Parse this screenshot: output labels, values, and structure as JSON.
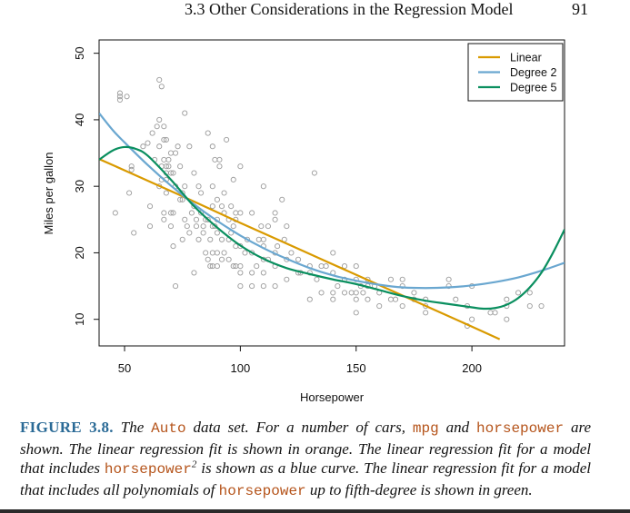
{
  "header": {
    "section_title": "3.3 Other Considerations in the Regression Model",
    "page_number": "91"
  },
  "colors": {
    "linear": "#d99a00",
    "degree2": "#6aa7d0",
    "degree5": "#0a8f5f",
    "points": "#9a9a9a",
    "caption_label": "#2a6a96",
    "caption_code": "#b5541b"
  },
  "chart_data": {
    "type": "scatter",
    "title": "",
    "xlabel": "Horsepower",
    "ylabel": "Miles per gallon",
    "xlim": [
      39,
      240
    ],
    "ylim": [
      6,
      52
    ],
    "x_ticks": [
      50,
      100,
      150,
      200
    ],
    "y_ticks": [
      10,
      20,
      30,
      40,
      50
    ],
    "grid": false,
    "legend_position": "top-right",
    "points": [
      [
        46,
        26
      ],
      [
        48,
        44
      ],
      [
        48,
        43
      ],
      [
        48,
        43.5
      ],
      [
        51,
        43.5
      ],
      [
        52,
        29
      ],
      [
        53,
        33
      ],
      [
        53,
        32.5
      ],
      [
        54,
        23
      ],
      [
        58,
        36
      ],
      [
        60,
        36.5
      ],
      [
        61,
        27
      ],
      [
        61,
        24
      ],
      [
        62,
        38
      ],
      [
        63,
        34
      ],
      [
        64,
        39
      ],
      [
        65,
        46
      ],
      [
        65,
        40
      ],
      [
        65,
        36
      ],
      [
        65,
        30
      ],
      [
        66,
        45
      ],
      [
        66,
        33
      ],
      [
        66,
        31
      ],
      [
        67,
        39
      ],
      [
        67,
        37
      ],
      [
        67,
        34
      ],
      [
        67,
        26
      ],
      [
        67,
        25
      ],
      [
        68,
        37
      ],
      [
        68,
        33
      ],
      [
        68,
        32
      ],
      [
        68,
        31
      ],
      [
        68,
        29
      ],
      [
        69,
        34
      ],
      [
        69,
        33
      ],
      [
        70,
        35
      ],
      [
        70,
        32
      ],
      [
        70,
        26
      ],
      [
        70,
        24
      ],
      [
        71,
        32
      ],
      [
        71,
        26
      ],
      [
        71,
        21
      ],
      [
        72,
        35
      ],
      [
        72,
        30
      ],
      [
        72,
        15
      ],
      [
        73,
        36
      ],
      [
        74,
        33
      ],
      [
        74,
        28
      ],
      [
        75,
        29
      ],
      [
        75,
        28
      ],
      [
        75,
        22
      ],
      [
        76,
        41
      ],
      [
        76,
        30
      ],
      [
        76,
        25
      ],
      [
        77,
        24
      ],
      [
        78,
        36
      ],
      [
        78,
        23
      ],
      [
        79,
        26
      ],
      [
        80,
        32
      ],
      [
        80,
        27
      ],
      [
        80,
        17
      ],
      [
        81,
        25
      ],
      [
        81,
        24
      ],
      [
        82,
        22
      ],
      [
        82,
        30
      ],
      [
        83,
        29
      ],
      [
        83,
        26
      ],
      [
        84,
        24
      ],
      [
        84,
        23
      ],
      [
        85,
        25
      ],
      [
        85,
        20
      ],
      [
        86,
        38
      ],
      [
        86,
        25
      ],
      [
        86,
        19
      ],
      [
        87,
        22
      ],
      [
        87,
        18
      ],
      [
        88,
        36
      ],
      [
        88,
        30
      ],
      [
        88,
        27
      ],
      [
        88,
        24
      ],
      [
        88,
        20
      ],
      [
        88,
        18
      ],
      [
        89,
        34
      ],
      [
        89,
        24
      ],
      [
        90,
        28
      ],
      [
        90,
        25
      ],
      [
        90,
        23
      ],
      [
        90,
        20
      ],
      [
        90,
        18
      ],
      [
        91,
        34
      ],
      [
        91,
        33
      ],
      [
        92,
        27
      ],
      [
        92,
        22
      ],
      [
        92,
        19
      ],
      [
        93,
        29
      ],
      [
        93,
        26
      ],
      [
        93,
        20
      ],
      [
        94,
        37
      ],
      [
        95,
        25
      ],
      [
        95,
        22
      ],
      [
        95,
        19
      ],
      [
        96,
        27
      ],
      [
        96,
        23
      ],
      [
        97,
        18
      ],
      [
        97,
        24
      ],
      [
        97,
        31
      ],
      [
        98,
        26
      ],
      [
        98,
        25
      ],
      [
        98,
        21
      ],
      [
        98,
        18
      ],
      [
        100,
        33
      ],
      [
        100,
        26
      ],
      [
        100,
        21
      ],
      [
        100,
        18
      ],
      [
        100,
        17
      ],
      [
        100,
        15
      ],
      [
        102,
        20
      ],
      [
        103,
        22
      ],
      [
        105,
        26
      ],
      [
        105,
        20
      ],
      [
        105,
        17
      ],
      [
        105,
        15
      ],
      [
        107,
        18
      ],
      [
        108,
        22
      ],
      [
        109,
        24
      ],
      [
        110,
        30
      ],
      [
        110,
        22
      ],
      [
        110,
        21
      ],
      [
        110,
        19
      ],
      [
        110,
        17
      ],
      [
        110,
        15
      ],
      [
        112,
        24
      ],
      [
        112,
        19
      ],
      [
        115,
        26
      ],
      [
        115,
        25
      ],
      [
        115,
        20
      ],
      [
        115,
        18
      ],
      [
        115,
        15
      ],
      [
        116,
        21
      ],
      [
        118,
        28
      ],
      [
        119,
        22
      ],
      [
        120,
        16
      ],
      [
        120,
        19
      ],
      [
        120,
        24
      ],
      [
        122,
        20
      ],
      [
        125,
        17
      ],
      [
        125,
        19
      ],
      [
        126,
        17
      ],
      [
        130,
        18
      ],
      [
        130,
        17
      ],
      [
        130,
        13
      ],
      [
        132,
        32
      ],
      [
        133,
        16
      ],
      [
        135,
        14
      ],
      [
        135,
        18
      ],
      [
        137,
        18
      ],
      [
        140,
        20
      ],
      [
        140,
        17
      ],
      [
        140,
        14
      ],
      [
        140,
        13
      ],
      [
        142,
        15
      ],
      [
        145,
        14
      ],
      [
        145,
        16
      ],
      [
        145,
        18
      ],
      [
        148,
        14
      ],
      [
        150,
        16
      ],
      [
        150,
        14
      ],
      [
        150,
        13
      ],
      [
        150,
        11
      ],
      [
        150,
        18
      ],
      [
        152,
        15
      ],
      [
        153,
        14
      ],
      [
        155,
        16
      ],
      [
        155,
        15
      ],
      [
        155,
        13
      ],
      [
        158,
        15
      ],
      [
        160,
        14
      ],
      [
        160,
        12
      ],
      [
        165,
        16
      ],
      [
        165,
        13
      ],
      [
        167,
        13
      ],
      [
        170,
        16
      ],
      [
        170,
        15
      ],
      [
        170,
        12
      ],
      [
        175,
        14
      ],
      [
        175,
        13
      ],
      [
        180,
        13
      ],
      [
        180,
        12
      ],
      [
        180,
        11
      ],
      [
        190,
        16
      ],
      [
        190,
        15
      ],
      [
        193,
        13
      ],
      [
        198,
        12
      ],
      [
        198,
        9
      ],
      [
        200,
        15
      ],
      [
        200,
        10
      ],
      [
        208,
        11
      ],
      [
        210,
        11
      ],
      [
        215,
        13
      ],
      [
        215,
        12
      ],
      [
        215,
        10
      ],
      [
        220,
        14
      ],
      [
        225,
        14
      ],
      [
        225,
        12
      ],
      [
        230,
        12
      ]
    ],
    "series": [
      {
        "name": "Linear",
        "kind": "line",
        "x": [
          39,
          50,
          75,
          100,
          125,
          150,
          175,
          200,
          212
        ],
        "y": [
          34.1,
          32.4,
          28.5,
          24.5,
          20.6,
          16.7,
          12.8,
          8.9,
          7.0
        ]
      },
      {
        "name": "Degree 2",
        "kind": "line",
        "x": [
          39,
          45,
          50,
          60,
          70,
          80,
          90,
          100,
          110,
          120,
          130,
          140,
          150,
          160,
          170,
          180,
          190,
          200,
          210,
          220,
          230,
          240
        ],
        "y": [
          41,
          38.4,
          36.6,
          33.2,
          30.1,
          27.3,
          24.8,
          22.6,
          20.7,
          19.1,
          17.7,
          16.6,
          15.8,
          15.2,
          14.8,
          14.7,
          14.8,
          15.1,
          15.6,
          16.3,
          17.3,
          18.5
        ]
      },
      {
        "name": "Degree 5",
        "kind": "line",
        "x": [
          39,
          45,
          50,
          55,
          60,
          70,
          80,
          90,
          100,
          110,
          120,
          130,
          140,
          150,
          160,
          170,
          180,
          190,
          200,
          205,
          210,
          215,
          220,
          225,
          230,
          235,
          240
        ],
        "y": [
          34,
          35.4,
          35.9,
          35.6,
          34.6,
          31.0,
          27.0,
          23.8,
          21.1,
          19.1,
          17.7,
          16.8,
          16.0,
          15.3,
          14.4,
          13.5,
          12.8,
          12.3,
          11.8,
          11.6,
          11.7,
          12.2,
          13.2,
          14.8,
          17.0,
          20.0,
          23.5
        ]
      }
    ]
  },
  "caption": {
    "label": "FIGURE 3.8.",
    "t1": " The ",
    "c1": "Auto",
    "t2": " data set. For a number of cars, ",
    "c2": "mpg",
    "t3": " and ",
    "c3": "horsepower",
    "t4": " are shown. The linear regression fit is shown in orange. The linear regression fit for a model that includes ",
    "c4": "horsepower",
    "sup": "2",
    "t5": " is shown as a blue curve. The linear regression fit for a model that includes all polynomials of ",
    "c5": "horsepower",
    "t6": " up to fifth-degree is shown in green."
  }
}
